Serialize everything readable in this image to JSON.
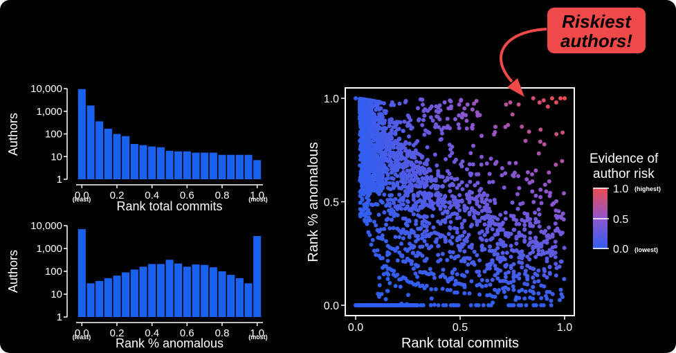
{
  "colors": {
    "background": "#000000",
    "bar": "#1a62ee",
    "low_risk": "#2f5ff2",
    "high_risk": "#ef4b4b",
    "callout_fill": "#f0494a",
    "axis": "#ffffff"
  },
  "chart_data": [
    {
      "type": "bar",
      "title": "",
      "xlabel": "Rank total commits",
      "ylabel": "Authors",
      "yscale": "log",
      "ylim": [
        1,
        10000
      ],
      "yticks": [
        "1",
        "10",
        "100",
        "1,000",
        "10,000"
      ],
      "xticks": [
        "0.0",
        "0.2",
        "0.4",
        "0.6",
        "0.8",
        "1.0"
      ],
      "x_end_notes": {
        "left": "(least)",
        "right": "(most)"
      },
      "categories": [
        0.0,
        0.05,
        0.1,
        0.15,
        0.2,
        0.25,
        0.3,
        0.35,
        0.4,
        0.45,
        0.5,
        0.55,
        0.6,
        0.65,
        0.7,
        0.75,
        0.8,
        0.85,
        0.9,
        0.95,
        1.0
      ],
      "values": [
        9500,
        1800,
        360,
        170,
        100,
        80,
        36,
        32,
        28,
        26,
        18,
        17,
        17,
        15,
        15,
        15,
        12,
        12,
        12,
        12,
        7
      ]
    },
    {
      "type": "bar",
      "title": "",
      "xlabel": "Rank % anomalous",
      "ylabel": "Authors",
      "yscale": "log",
      "ylim": [
        1,
        10000
      ],
      "yticks": [
        "1",
        "10",
        "100",
        "1,000",
        "10,000"
      ],
      "xticks": [
        "0.0",
        "0.2",
        "0.4",
        "0.6",
        "0.8",
        "1.0"
      ],
      "x_end_notes": {
        "left": "(least)",
        "right": "(most)"
      },
      "categories": [
        0.0,
        0.05,
        0.1,
        0.15,
        0.2,
        0.25,
        0.3,
        0.35,
        0.4,
        0.45,
        0.5,
        0.55,
        0.6,
        0.65,
        0.7,
        0.75,
        0.8,
        0.85,
        0.9,
        0.95,
        1.0
      ],
      "values": [
        7000,
        30,
        38,
        50,
        65,
        90,
        120,
        160,
        210,
        210,
        320,
        220,
        160,
        200,
        190,
        150,
        100,
        70,
        50,
        30,
        3500
      ]
    },
    {
      "type": "scatter",
      "title": "",
      "xlabel": "Rank total commits",
      "ylabel": "Rank % anomalous",
      "xlim": [
        0,
        1
      ],
      "ylim": [
        0,
        1
      ],
      "xticks": [
        "0.0",
        "0.5",
        "1.0"
      ],
      "yticks": [
        "0.0",
        "0.5",
        "1.0"
      ],
      "color_by": "Evidence of author risk = rank total commits × rank % anomalous",
      "colorbar": {
        "title": [
          "Evidence of",
          "author risk"
        ],
        "ticks": [
          "0.0",
          "0.5",
          "1.0"
        ],
        "tick_notes": {
          "low": "(lowest)",
          "high": "(highest)"
        },
        "range": [
          0,
          1
        ]
      },
      "annotation": {
        "text": [
          "Riskiest",
          "authors!"
        ]
      },
      "structure": {
        "baseline_row": {
          "y": 0.0,
          "x_from": 0.0,
          "x_to": 0.3,
          "sparse_to": 0.95
        },
        "fan_curves_per_n": [
          1,
          2,
          3,
          4,
          5,
          6,
          7,
          8,
          9,
          10,
          11,
          12,
          13,
          14,
          15,
          16,
          17,
          18,
          19,
          20
        ],
        "dense_cluster": {
          "x": [
            0.03,
            0.13
          ],
          "y": [
            0.55,
            0.85
          ]
        },
        "top_left_point": {
          "x": 0.0,
          "y": 1.0
        }
      },
      "highlight_points": [
        {
          "x": 0.85,
          "y": 1.0
        },
        {
          "x": 0.88,
          "y": 0.98
        },
        {
          "x": 0.9,
          "y": 0.99
        },
        {
          "x": 0.92,
          "y": 0.96
        },
        {
          "x": 0.94,
          "y": 1.0
        },
        {
          "x": 0.96,
          "y": 0.98
        },
        {
          "x": 0.98,
          "y": 1.0
        },
        {
          "x": 1.0,
          "y": 1.0
        },
        {
          "x": 0.78,
          "y": 0.97
        },
        {
          "x": 0.72,
          "y": 0.97
        },
        {
          "x": 0.74,
          "y": 0.98
        }
      ]
    }
  ]
}
